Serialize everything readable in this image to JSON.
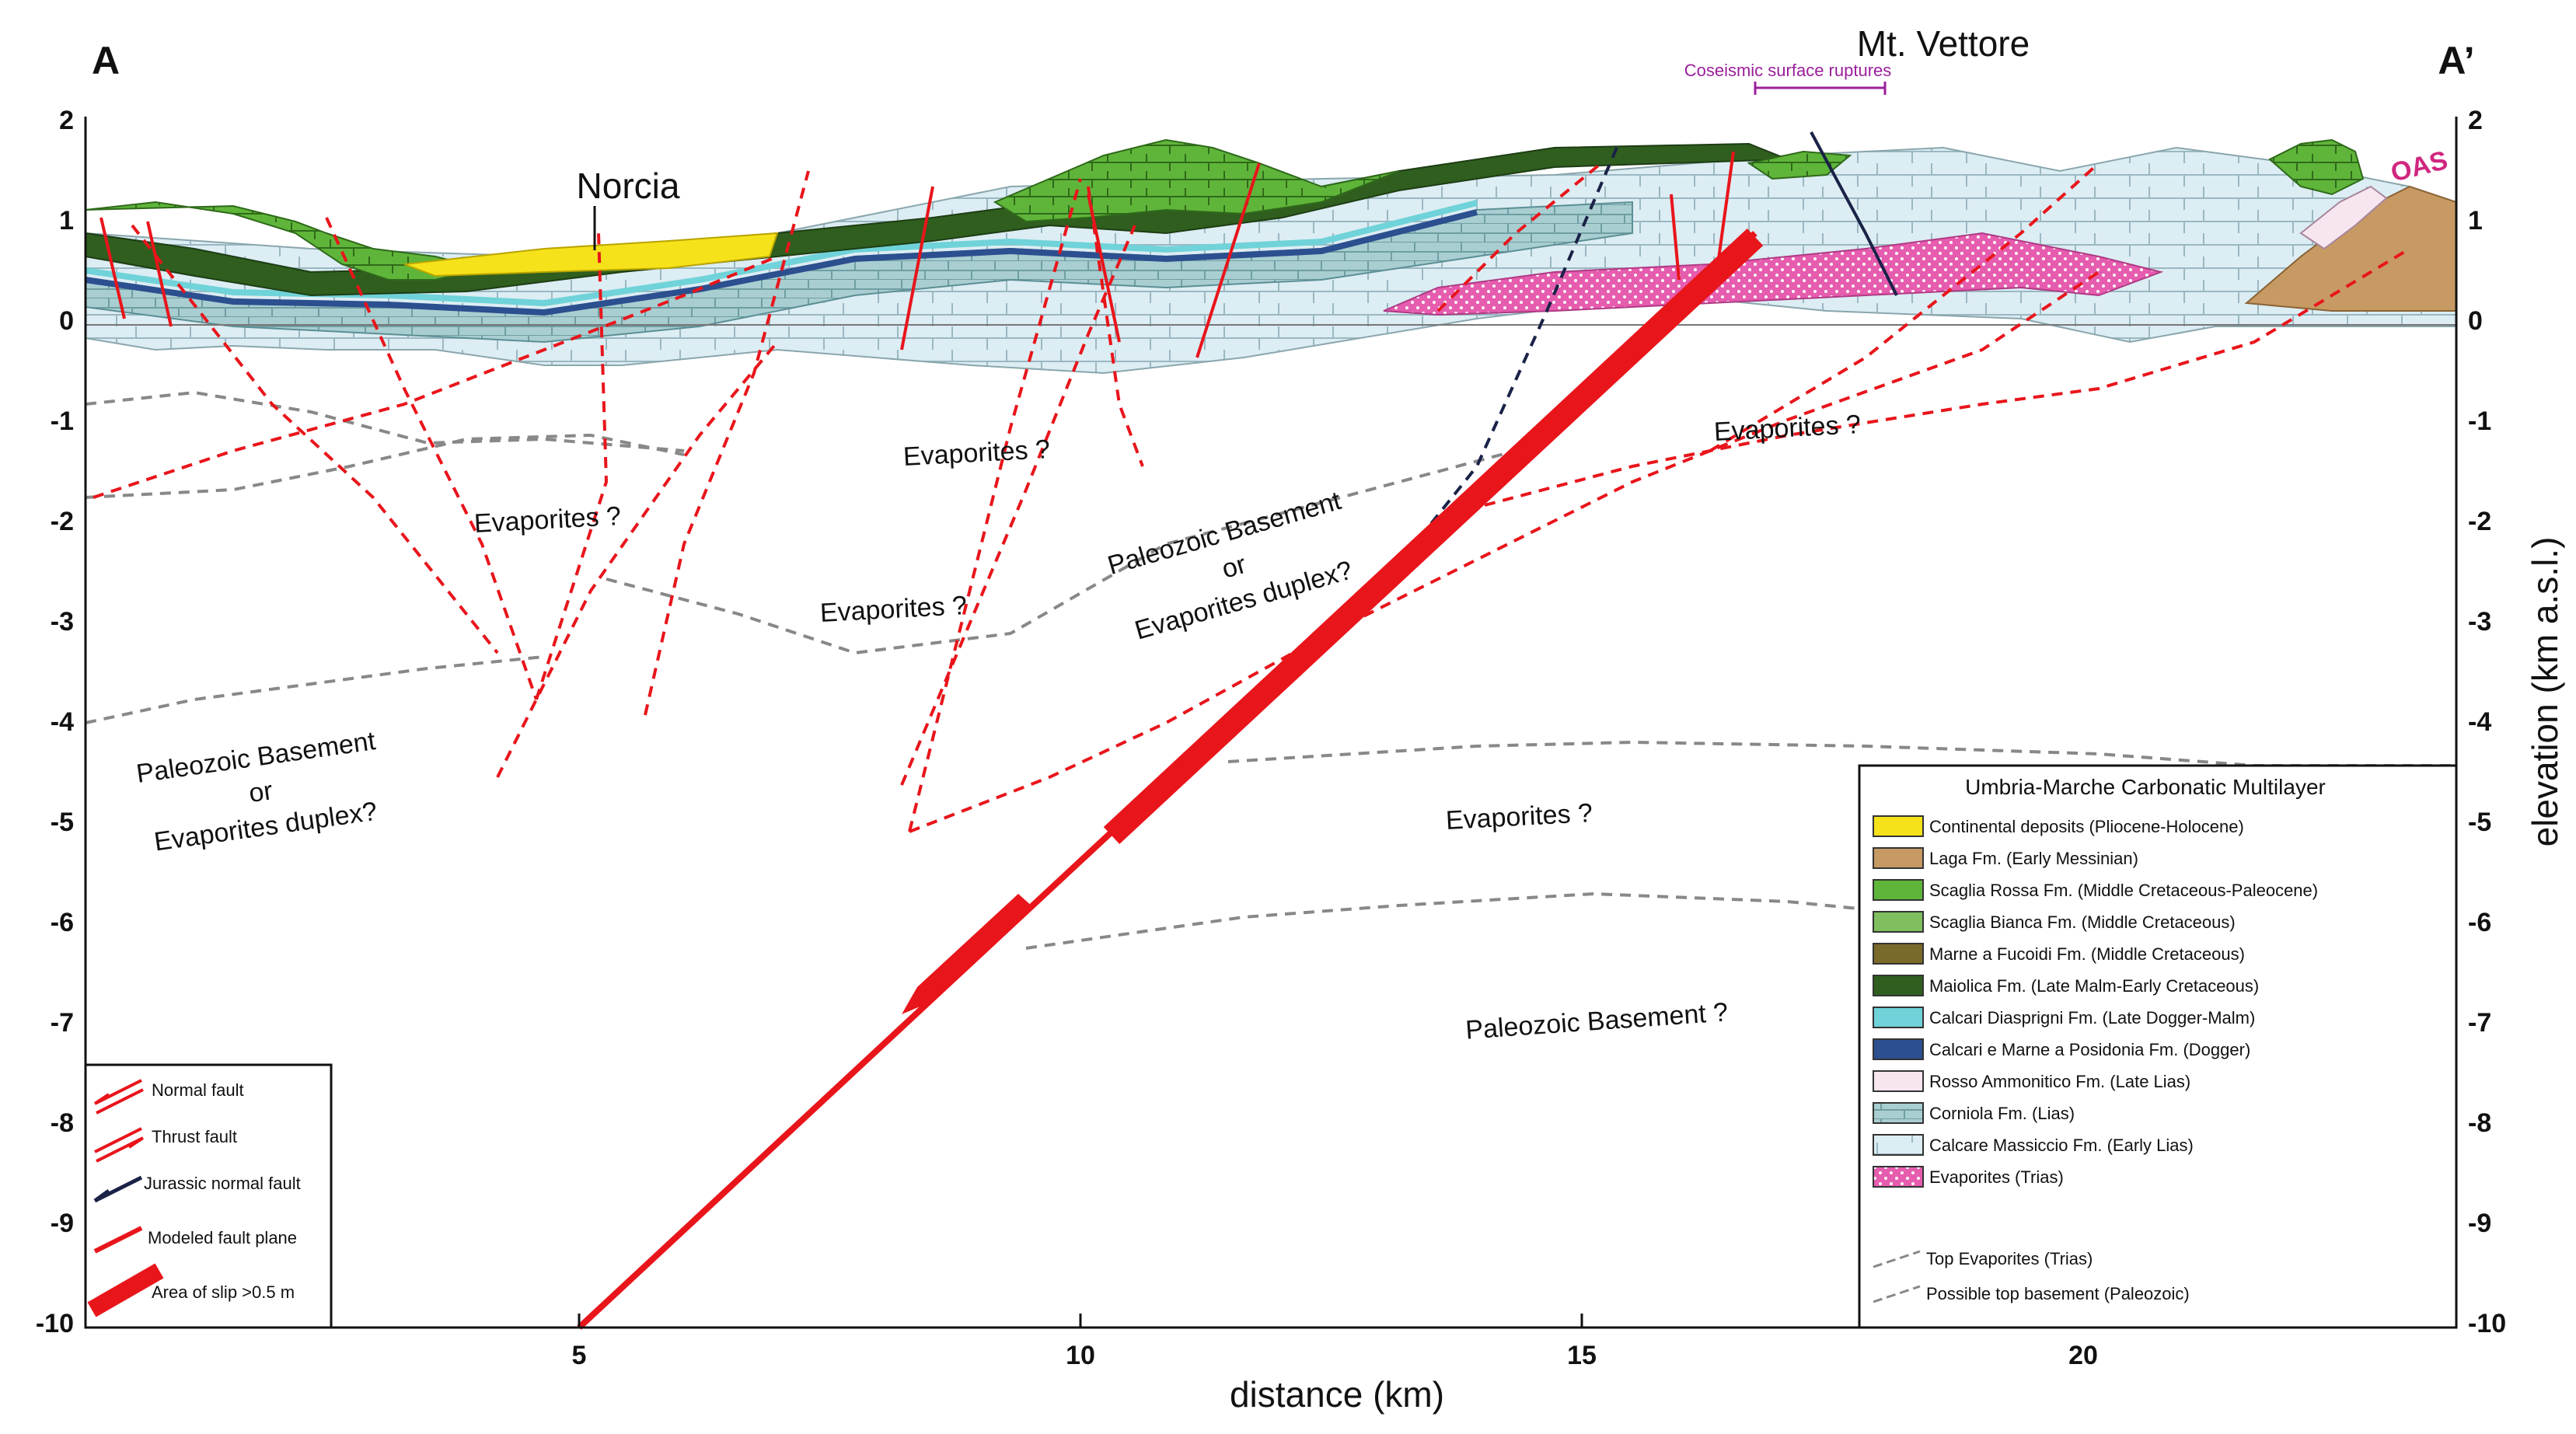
{
  "corner_labels": {
    "left": "A",
    "right": "A’"
  },
  "places": {
    "norcia": "Norcia",
    "vettore": "Mt. Vettore",
    "ruptures": "Coseismic surface ruptures",
    "oas": "OAS"
  },
  "zone_labels": {
    "evap_1": "Evaporites ?",
    "evap_2": "Evaporites ?",
    "evap_3": "Evaporites ?",
    "evap_4": "Evaporites ?",
    "evap_5": "Evaporites ?",
    "basement_left": [
      "Paleozoic Basement",
      "or",
      "Evaporites duplex?"
    ],
    "basement_center": [
      "Paleozoic Basement",
      "or",
      "Evaporites duplex?"
    ],
    "basement_bottom": "Paleozoic Basement ?"
  },
  "axes": {
    "x_title": "distance (km)",
    "y_title": "elevation (km a.s.l.)",
    "x_ticks": [
      "5",
      "10",
      "15",
      "20"
    ],
    "y_ticks": [
      "2",
      "1",
      "0",
      "-1",
      "-2",
      "-3",
      "-4",
      "-5",
      "-6",
      "-7",
      "-8",
      "-9",
      "-10"
    ]
  },
  "key": {
    "items": [
      "Normal fault",
      "Thrust fault",
      "Jurassic normal fault",
      "Modeled fault plane",
      "Area of slip >0.5 m"
    ]
  },
  "legend": {
    "title": "Umbria-Marche Carbonatic Multilayer",
    "items": [
      {
        "label": "Continental deposits (Pliocene-Holocene)",
        "color": "#f5e21a"
      },
      {
        "label": "Laga Fm. (Early Messinian)",
        "color": "#c79a63"
      },
      {
        "label": "Scaglia Rossa Fm. (Middle Cretaceous-Paleocene)",
        "color": "#5fb53a"
      },
      {
        "label": "Scaglia Bianca Fm. (Middle Cretaceous)",
        "color": "#7fbf5f"
      },
      {
        "label": "Marne a Fucoidi Fm. (Middle Cretaceous)",
        "color": "#7a6a2a"
      },
      {
        "label": "Maiolica Fm. (Late Malm-Early Cretaceous)",
        "color": "#2f5e1f"
      },
      {
        "label": "Calcari Diasprigni Fm. (Late Dogger-Malm)",
        "color": "#6fd3d9"
      },
      {
        "label": "Calcari e Marne a Posidonia Fm. (Dogger)",
        "color": "#2c4f8f"
      },
      {
        "label": "Rosso Ammonitico Fm. (Late Lias)",
        "color": "#f7e6f0"
      },
      {
        "label": "Corniola Fm. (Lias)",
        "color": "#a9ced1"
      },
      {
        "label": "Calcare Massiccio Fm. (Early Lias)",
        "color": "#dcedf3"
      },
      {
        "label": "Evaporites (Trias)",
        "color": "#e65cae"
      }
    ],
    "top_evaporites": "Top Evaporites (Trias)",
    "top_basement": "Possible top basement (Paleozoic)"
  },
  "colors": {
    "fault": "#e8151b",
    "jurassic": "#1a2247",
    "grey_line": "#888888"
  }
}
